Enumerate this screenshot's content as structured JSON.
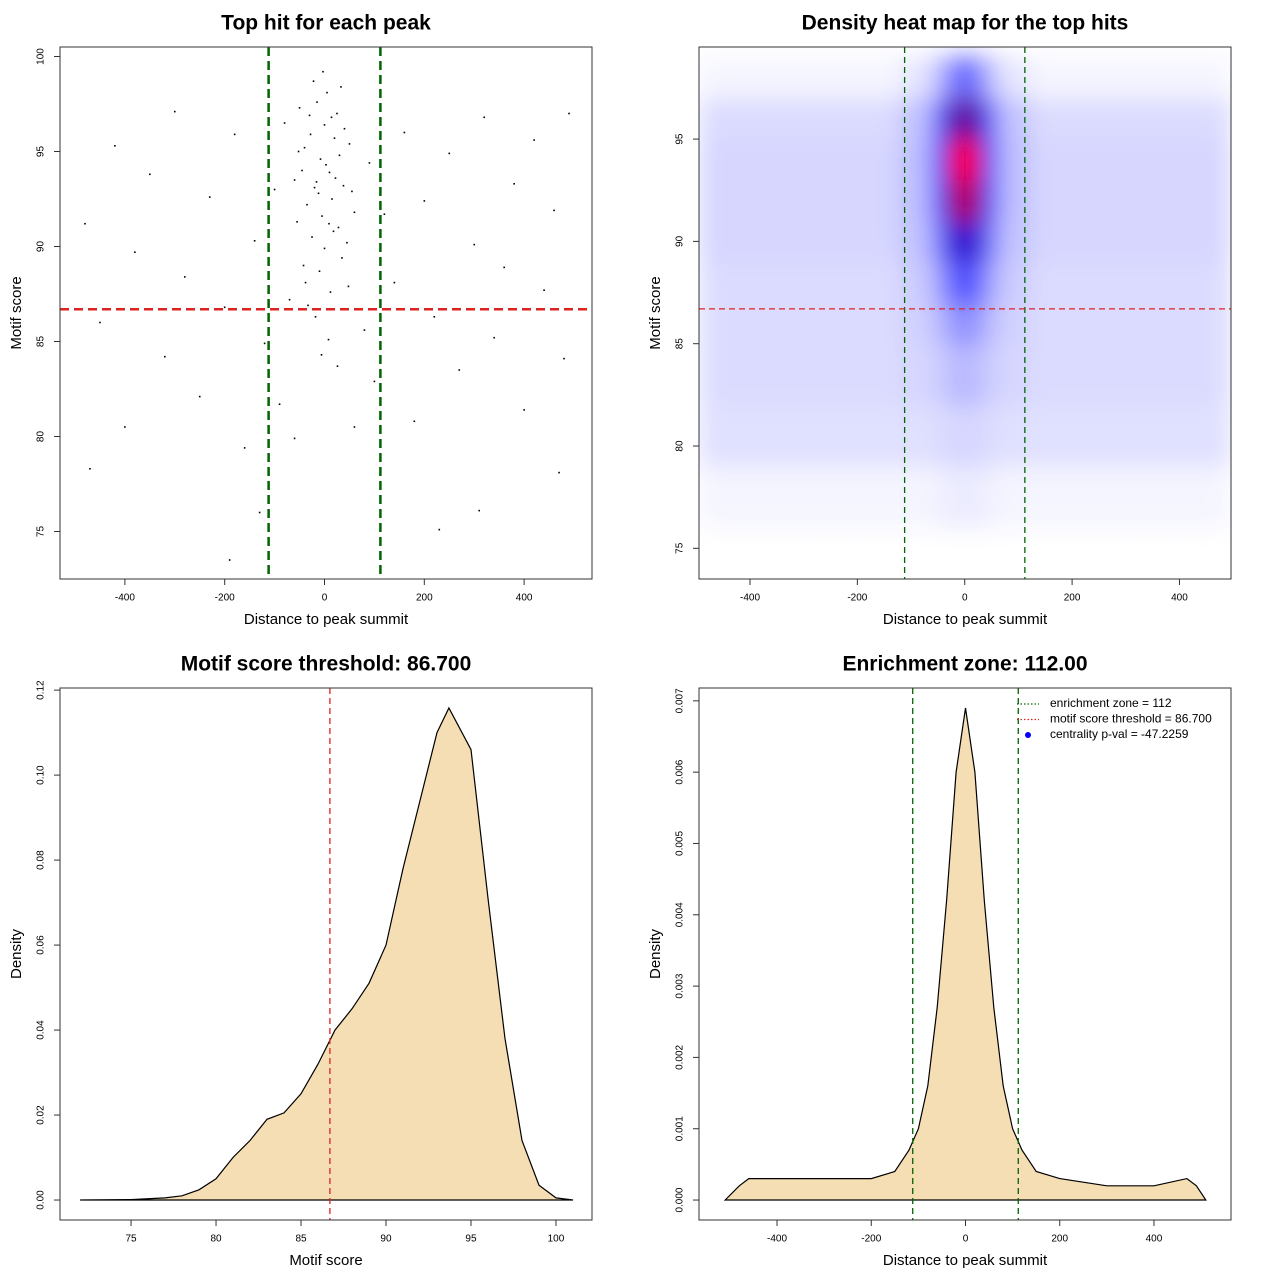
{
  "chart_data": [
    {
      "type": "scatter",
      "title": "Top hit for each peak",
      "xlabel": "Distance to peak summit",
      "ylabel": "Motif score",
      "xlim": [
        -530,
        536
      ],
      "ylim": [
        72.5,
        100.5
      ],
      "xticks": [
        -400,
        -200,
        0,
        200,
        400
      ],
      "yticks": [
        75,
        80,
        85,
        90,
        95,
        100
      ],
      "color": "#000000",
      "vlines": [
        {
          "value": -112,
          "color": "#006400"
        },
        {
          "value": 112,
          "color": "#006400"
        }
      ],
      "hlines": [
        {
          "value": 86.7,
          "color": "#dd2222"
        }
      ],
      "points": [
        [
          -40,
          95.2
        ],
        [
          -20,
          93.1
        ],
        [
          0,
          96.4
        ],
        [
          15,
          92.5
        ],
        [
          30,
          94.8
        ],
        [
          -55,
          91.3
        ],
        [
          45,
          90.2
        ],
        [
          5,
          98.1
        ],
        [
          -10,
          88.7
        ],
        [
          25,
          97.0
        ],
        [
          -30,
          96.9
        ],
        [
          10,
          93.9
        ],
        [
          -5,
          91.6
        ],
        [
          35,
          89.4
        ],
        [
          -45,
          94.0
        ],
        [
          55,
          92.9
        ],
        [
          -25,
          90.5
        ],
        [
          20,
          95.7
        ],
        [
          -15,
          97.6
        ],
        [
          40,
          96.2
        ],
        [
          -35,
          92.2
        ],
        [
          0,
          89.9
        ],
        [
          12,
          87.6
        ],
        [
          -8,
          94.6
        ],
        [
          28,
          91.0
        ],
        [
          -50,
          97.3
        ],
        [
          50,
          95.4
        ],
        [
          -18,
          86.3
        ],
        [
          8,
          85.1
        ],
        [
          -60,
          93.5
        ],
        [
          60,
          91.8
        ],
        [
          -3,
          99.2
        ],
        [
          33,
          98.4
        ],
        [
          -38,
          88.1
        ],
        [
          18,
          90.8
        ],
        [
          -28,
          95.9
        ],
        [
          3,
          94.3
        ],
        [
          -12,
          92.8
        ],
        [
          22,
          93.6
        ],
        [
          -42,
          89.0
        ],
        [
          48,
          87.9
        ],
        [
          -22,
          98.7
        ],
        [
          14,
          96.8
        ],
        [
          -52,
          95.0
        ],
        [
          38,
          93.2
        ],
        [
          -6,
          84.3
        ],
        [
          26,
          83.7
        ],
        [
          -33,
          86.9
        ],
        [
          9,
          91.2
        ],
        [
          -16,
          93.4
        ],
        [
          -480,
          91.2
        ],
        [
          -450,
          86.0
        ],
        [
          -420,
          95.3
        ],
        [
          -400,
          80.5
        ],
        [
          -380,
          89.7
        ],
        [
          -350,
          93.8
        ],
        [
          -320,
          84.2
        ],
        [
          -300,
          97.1
        ],
        [
          -280,
          88.4
        ],
        [
          -250,
          82.1
        ],
        [
          -230,
          92.6
        ],
        [
          -200,
          86.8
        ],
        [
          -180,
          95.9
        ],
        [
          -160,
          79.4
        ],
        [
          -140,
          90.3
        ],
        [
          -120,
          84.9
        ],
        [
          -100,
          93.0
        ],
        [
          -90,
          81.7
        ],
        [
          -80,
          96.5
        ],
        [
          -70,
          87.2
        ],
        [
          80,
          85.6
        ],
        [
          90,
          94.4
        ],
        [
          100,
          82.9
        ],
        [
          120,
          91.7
        ],
        [
          140,
          88.1
        ],
        [
          160,
          96.0
        ],
        [
          180,
          80.8
        ],
        [
          200,
          92.4
        ],
        [
          220,
          86.3
        ],
        [
          250,
          94.9
        ],
        [
          270,
          83.5
        ],
        [
          300,
          90.1
        ],
        [
          320,
          96.8
        ],
        [
          340,
          85.2
        ],
        [
          360,
          88.9
        ],
        [
          380,
          93.3
        ],
        [
          400,
          81.4
        ],
        [
          420,
          95.6
        ],
        [
          440,
          87.7
        ],
        [
          460,
          91.9
        ],
        [
          480,
          84.1
        ],
        [
          490,
          97.0
        ],
        [
          -470,
          78.3
        ],
        [
          -130,
          76.0
        ],
        [
          -190,
          73.5
        ],
        [
          230,
          75.1
        ],
        [
          310,
          76.1
        ],
        [
          470,
          78.1
        ],
        [
          -60,
          79.9
        ],
        [
          60,
          80.5
        ]
      ]
    },
    {
      "type": "heatmap",
      "title": "Density heat map for the top hits",
      "xlabel": "Distance to peak summit",
      "ylabel": "Motif score",
      "xlim": [
        -495,
        496
      ],
      "ylim": [
        73.5,
        99.5
      ],
      "xticks": [
        -400,
        -200,
        0,
        200,
        400
      ],
      "yticks": [
        75,
        80,
        85,
        90,
        95
      ],
      "colors": [
        "#ffffff",
        "#0000ff",
        "#ff0000"
      ],
      "vlines": [
        {
          "value": -112,
          "color": "#006400"
        },
        {
          "value": 112,
          "color": "#006400"
        }
      ],
      "hlines": [
        {
          "value": 86.7,
          "color": "#dd2222"
        }
      ],
      "x_edges": [
        -495,
        -400,
        -300,
        -200,
        -120,
        -60,
        -30,
        0,
        30,
        60,
        120,
        200,
        300,
        400,
        496
      ],
      "y_edges": [
        76,
        79,
        82,
        85,
        87,
        89,
        91,
        93,
        95,
        97,
        99
      ],
      "z": [
        [
          0.02,
          0.02,
          0.02,
          0.02,
          0.02,
          0.03,
          0.04,
          0.04,
          0.03,
          0.02,
          0.02,
          0.02,
          0.02,
          0.02
        ],
        [
          0.06,
          0.06,
          0.06,
          0.06,
          0.06,
          0.07,
          0.08,
          0.08,
          0.07,
          0.06,
          0.06,
          0.06,
          0.06,
          0.06
        ],
        [
          0.07,
          0.07,
          0.07,
          0.07,
          0.08,
          0.1,
          0.14,
          0.14,
          0.1,
          0.08,
          0.07,
          0.07,
          0.07,
          0.07
        ],
        [
          0.07,
          0.07,
          0.07,
          0.07,
          0.09,
          0.14,
          0.22,
          0.22,
          0.14,
          0.09,
          0.07,
          0.07,
          0.07,
          0.07
        ],
        [
          0.07,
          0.07,
          0.07,
          0.07,
          0.1,
          0.2,
          0.35,
          0.35,
          0.2,
          0.1,
          0.07,
          0.07,
          0.07,
          0.07
        ],
        [
          0.08,
          0.08,
          0.08,
          0.08,
          0.12,
          0.3,
          0.6,
          0.6,
          0.3,
          0.12,
          0.08,
          0.08,
          0.08,
          0.08
        ],
        [
          0.08,
          0.08,
          0.08,
          0.08,
          0.13,
          0.4,
          0.85,
          0.85,
          0.4,
          0.13,
          0.08,
          0.08,
          0.08,
          0.08
        ],
        [
          0.08,
          0.08,
          0.08,
          0.08,
          0.13,
          0.45,
          1.0,
          1.0,
          0.45,
          0.13,
          0.08,
          0.08,
          0.08,
          0.08
        ],
        [
          0.07,
          0.07,
          0.07,
          0.07,
          0.12,
          0.35,
          0.7,
          0.7,
          0.35,
          0.12,
          0.07,
          0.07,
          0.07,
          0.07
        ],
        [
          0.02,
          0.02,
          0.02,
          0.02,
          0.05,
          0.15,
          0.3,
          0.3,
          0.15,
          0.05,
          0.02,
          0.02,
          0.02,
          0.02
        ]
      ]
    },
    {
      "type": "area",
      "title": "Motif score threshold: 86.700",
      "xlabel": "Motif score",
      "ylabel": "Density",
      "xlim": [
        70.82,
        102.12
      ],
      "ylim": [
        -0.0047,
        0.1205
      ],
      "xticks": [
        75,
        80,
        85,
        90,
        95,
        100
      ],
      "yticks": [
        {
          "value": 0,
          "label": "0.00"
        },
        {
          "value": 0.02,
          "label": "0.02"
        },
        {
          "value": 0.04,
          "label": "0.04"
        },
        {
          "value": 0.06,
          "label": "0.06"
        },
        {
          "value": 0.08,
          "label": "0.08"
        },
        {
          "value": 0.1,
          "label": "0.10"
        },
        {
          "value": 0.12,
          "label": "0.12"
        }
      ],
      "color": "#f5deb3",
      "vlines": [
        {
          "value": 86.7,
          "color": "#dd2222"
        }
      ],
      "x": [
        72,
        75,
        77,
        78,
        79,
        80,
        81,
        82,
        83,
        84,
        85,
        86,
        87,
        88,
        89,
        90,
        91,
        92,
        93,
        93.7,
        95,
        96,
        97,
        98,
        99,
        100,
        101
      ],
      "values": [
        0,
        0.0001,
        0.0005,
        0.001,
        0.0024,
        0.005,
        0.01,
        0.014,
        0.019,
        0.0205,
        0.025,
        0.032,
        0.04,
        0.045,
        0.051,
        0.06,
        0.078,
        0.094,
        0.11,
        0.1158,
        0.106,
        0.071,
        0.038,
        0.014,
        0.0035,
        0.0005,
        0
      ]
    },
    {
      "type": "area",
      "title": "Enrichment zone: 112.00",
      "xlabel": "Distance to peak summit",
      "ylabel": "Density",
      "xlim": [
        -565.6,
        563.5
      ],
      "ylim": [
        -0.00028,
        0.00718
      ],
      "xticks": [
        -400,
        -200,
        0,
        200,
        400
      ],
      "yticks": [
        {
          "value": 0,
          "label": "0.000"
        },
        {
          "value": 0.001,
          "label": "0.001"
        },
        {
          "value": 0.002,
          "label": "0.002"
        },
        {
          "value": 0.003,
          "label": "0.003"
        },
        {
          "value": 0.004,
          "label": "0.004"
        },
        {
          "value": 0.005,
          "label": "0.005"
        },
        {
          "value": 0.006,
          "label": "0.006"
        },
        {
          "value": 0.007,
          "label": "0.007"
        }
      ],
      "color": "#f5deb3",
      "vlines": [
        {
          "value": -112,
          "color": "#006400"
        },
        {
          "value": 112,
          "color": "#006400"
        }
      ],
      "x": [
        -510,
        -480,
        -460,
        -400,
        -300,
        -200,
        -150,
        -120,
        -100,
        -80,
        -60,
        -40,
        -20,
        0,
        20,
        40,
        60,
        80,
        100,
        120,
        150,
        200,
        300,
        400,
        470,
        490,
        510
      ],
      "values": [
        0,
        0.0002,
        0.0003,
        0.0003,
        0.0003,
        0.0003,
        0.0004,
        0.0007,
        0.001,
        0.0016,
        0.0027,
        0.0042,
        0.006,
        0.0069,
        0.006,
        0.0042,
        0.0027,
        0.0016,
        0.001,
        0.0007,
        0.0004,
        0.0003,
        0.0002,
        0.0002,
        0.0003,
        0.0002,
        0
      ],
      "legend_position": "top-right",
      "legend": [
        {
          "label": "enrichment zone = 112",
          "color": "#006400",
          "symbol": "line"
        },
        {
          "label": "motif score threshold = 86.700",
          "color": "#dd2222",
          "symbol": "line"
        },
        {
          "label": "centrality p-val = -47.2259",
          "color": "#0000ff",
          "symbol": "point"
        }
      ]
    }
  ]
}
